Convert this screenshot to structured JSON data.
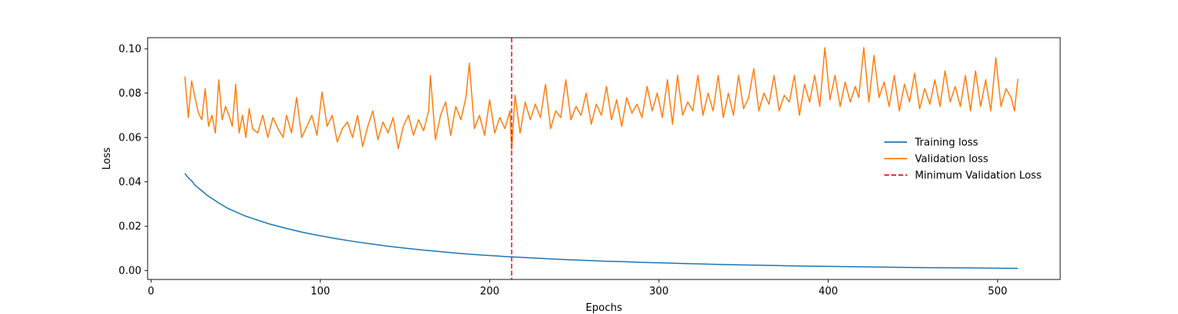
{
  "chart_data": {
    "type": "line",
    "xlabel": "Epochs",
    "ylabel": "Loss",
    "xlim": [
      -2,
      537
    ],
    "ylim": [
      -0.004,
      0.105
    ],
    "xticks": [
      0,
      100,
      200,
      300,
      400,
      500
    ],
    "xtick_labels": [
      "0",
      "100",
      "200",
      "300",
      "400",
      "500"
    ],
    "yticks": [
      0.0,
      0.02,
      0.04,
      0.06,
      0.08,
      0.1
    ],
    "ytick_labels": [
      "0.00",
      "0.02",
      "0.04",
      "0.06",
      "0.08",
      "0.10"
    ],
    "grid": false,
    "legend_position": "center-right",
    "series": [
      {
        "name": "Training loss",
        "color": "#1f77b4",
        "x": [
          20,
          22,
          24,
          26,
          28,
          30,
          33,
          36,
          40,
          45,
          50,
          55,
          60,
          70,
          80,
          90,
          100,
          110,
          120,
          130,
          140,
          150,
          160,
          170,
          180,
          190,
          200,
          210,
          220,
          230,
          240,
          250,
          260,
          270,
          280,
          290,
          300,
          320,
          340,
          360,
          380,
          400,
          420,
          440,
          460,
          480,
          500,
          512
        ],
        "y": [
          0.0438,
          0.0418,
          0.0405,
          0.0385,
          0.0372,
          0.036,
          0.034,
          0.0325,
          0.0305,
          0.0282,
          0.0265,
          0.0248,
          0.0235,
          0.021,
          0.019,
          0.0172,
          0.0157,
          0.0143,
          0.0131,
          0.012,
          0.011,
          0.0101,
          0.0093,
          0.0086,
          0.0079,
          0.0073,
          0.0068,
          0.0063,
          0.0059,
          0.0055,
          0.0051,
          0.0048,
          0.0045,
          0.0042,
          0.004,
          0.0037,
          0.0035,
          0.0031,
          0.0027,
          0.0024,
          0.0021,
          0.0019,
          0.0017,
          0.0015,
          0.0013,
          0.0012,
          0.0011,
          0.001
        ]
      },
      {
        "name": "Validation loss",
        "color": "#ff7f0e",
        "x": [
          20,
          22,
          24,
          26,
          28,
          30,
          32,
          34,
          36,
          38,
          40,
          42,
          44,
          46,
          48,
          50,
          52,
          54,
          56,
          58,
          60,
          63,
          66,
          69,
          72,
          75,
          78,
          80,
          83,
          86,
          89,
          92,
          95,
          98,
          101,
          104,
          107,
          110,
          113,
          116,
          119,
          122,
          125,
          128,
          131,
          134,
          137,
          140,
          143,
          146,
          149,
          152,
          155,
          158,
          161,
          164,
          165,
          168,
          171,
          174,
          177,
          180,
          183,
          186,
          188,
          191,
          194,
          197,
          200,
          203,
          206,
          209,
          212,
          213,
          215,
          218,
          221,
          224,
          227,
          230,
          233,
          236,
          239,
          242,
          245,
          248,
          251,
          254,
          257,
          260,
          263,
          266,
          269,
          272,
          275,
          278,
          281,
          284,
          287,
          290,
          293,
          296,
          299,
          302,
          305,
          308,
          311,
          314,
          317,
          320,
          323,
          326,
          329,
          332,
          335,
          338,
          341,
          344,
          347,
          350,
          353,
          356,
          359,
          362,
          365,
          368,
          371,
          374,
          377,
          380,
          383,
          386,
          389,
          392,
          395,
          398,
          401,
          404,
          407,
          410,
          413,
          416,
          418,
          421,
          424,
          427,
          430,
          433,
          436,
          439,
          442,
          445,
          448,
          451,
          454,
          457,
          460,
          463,
          466,
          469,
          472,
          475,
          478,
          481,
          484,
          487,
          490,
          493,
          496,
          499,
          502,
          505,
          508,
          510,
          512
        ],
        "y": [
          0.0875,
          0.069,
          0.0855,
          0.078,
          0.071,
          0.068,
          0.082,
          0.065,
          0.07,
          0.062,
          0.086,
          0.068,
          0.074,
          0.07,
          0.065,
          0.084,
          0.062,
          0.07,
          0.06,
          0.073,
          0.064,
          0.062,
          0.07,
          0.06,
          0.069,
          0.064,
          0.06,
          0.07,
          0.062,
          0.078,
          0.06,
          0.065,
          0.07,
          0.061,
          0.0805,
          0.065,
          0.07,
          0.058,
          0.064,
          0.067,
          0.06,
          0.07,
          0.056,
          0.065,
          0.072,
          0.059,
          0.067,
          0.062,
          0.069,
          0.055,
          0.065,
          0.07,
          0.061,
          0.068,
          0.063,
          0.072,
          0.088,
          0.059,
          0.07,
          0.076,
          0.061,
          0.074,
          0.068,
          0.078,
          0.0935,
          0.064,
          0.07,
          0.061,
          0.077,
          0.062,
          0.069,
          0.064,
          0.072,
          0.0545,
          0.079,
          0.062,
          0.076,
          0.068,
          0.075,
          0.069,
          0.084,
          0.064,
          0.072,
          0.069,
          0.086,
          0.068,
          0.074,
          0.07,
          0.08,
          0.066,
          0.075,
          0.07,
          0.083,
          0.068,
          0.077,
          0.065,
          0.078,
          0.071,
          0.075,
          0.069,
          0.083,
          0.072,
          0.08,
          0.069,
          0.086,
          0.066,
          0.088,
          0.07,
          0.076,
          0.072,
          0.088,
          0.07,
          0.08,
          0.072,
          0.088,
          0.069,
          0.08,
          0.07,
          0.088,
          0.073,
          0.078,
          0.091,
          0.072,
          0.08,
          0.075,
          0.088,
          0.072,
          0.079,
          0.076,
          0.088,
          0.07,
          0.084,
          0.076,
          0.088,
          0.074,
          0.1005,
          0.077,
          0.088,
          0.074,
          0.085,
          0.076,
          0.083,
          0.078,
          0.1005,
          0.076,
          0.097,
          0.078,
          0.085,
          0.074,
          0.088,
          0.072,
          0.084,
          0.076,
          0.089,
          0.073,
          0.082,
          0.075,
          0.086,
          0.074,
          0.09,
          0.076,
          0.083,
          0.074,
          0.088,
          0.072,
          0.09,
          0.074,
          0.086,
          0.072,
          0.096,
          0.074,
          0.082,
          0.078,
          0.072,
          0.0865
        ]
      }
    ],
    "vlines": [
      {
        "name": "Minimum Validation Loss",
        "x": 213,
        "color": "#e41a1c",
        "style": "dashed"
      }
    ]
  }
}
